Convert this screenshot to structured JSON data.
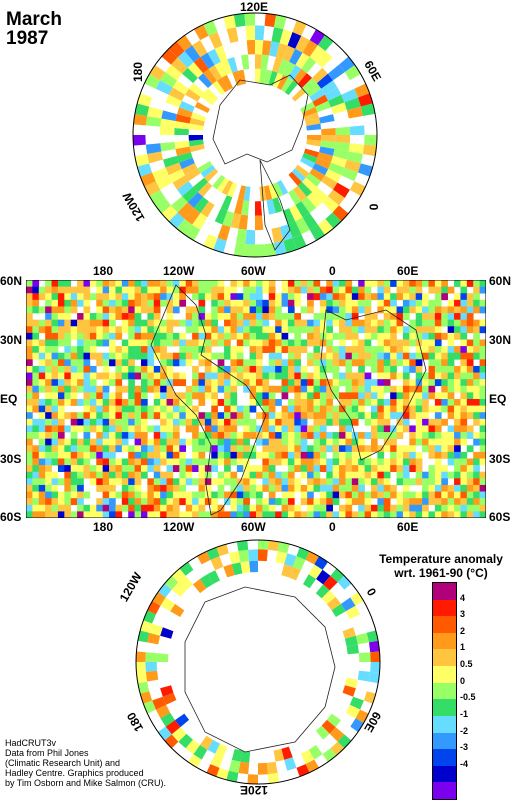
{
  "title": {
    "month": "March",
    "year": "1987"
  },
  "map": {
    "lat_labels": [
      "60N",
      "30N",
      "EQ",
      "30S",
      "60S"
    ],
    "lon_labels": [
      "180",
      "120W",
      "60W",
      "0",
      "60E"
    ],
    "north_pole_labels": [
      "120E",
      "60E",
      "0",
      "120W",
      "180"
    ],
    "south_pole_labels": [
      "120W",
      "0",
      "60E",
      "120E",
      "180"
    ]
  },
  "legend": {
    "title_line1": "Temperature anomaly",
    "title_line2": "wrt. 1961-90  (°C)",
    "ticks": [
      "4",
      "3",
      "2",
      "1",
      "0.5",
      "0",
      "-0.5",
      "-1",
      "-2",
      "-3",
      "-4"
    ],
    "colors": [
      "#b0007a",
      "#ff1a00",
      "#ff5a00",
      "#ff9a1a",
      "#ffc440",
      "#ffff66",
      "#99ff66",
      "#33dd66",
      "#66ddff",
      "#3399ff",
      "#0044ee",
      "#0000cc",
      "#7a00ee"
    ]
  },
  "credits": [
    "HadCRUT3v",
    "Data from Phil Jones",
    "(Climatic Research Unit) and",
    "Hadley Centre.  Graphics produced",
    "by Tim Osborn and Mike Salmon (CRU)."
  ]
}
